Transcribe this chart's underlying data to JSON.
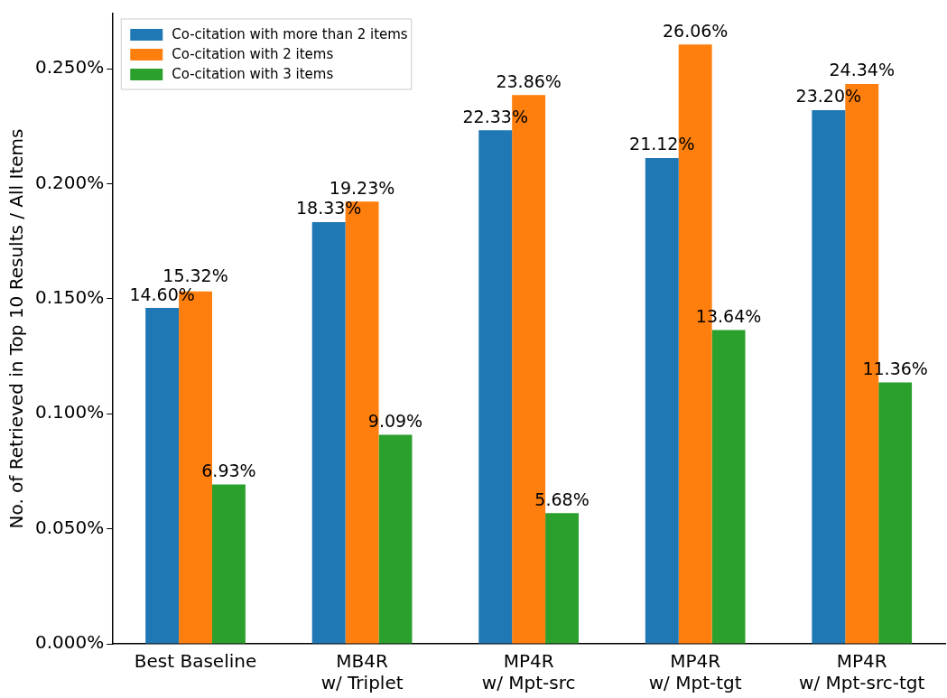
{
  "chart_data": {
    "type": "bar",
    "ylabel": "No. of Retrieved in Top 10 Results / All Items",
    "categories": [
      "Best Baseline",
      "MB4R\nw/ Triplet",
      "MP4R\nw/ Mpt-src",
      "MP4R\nw/ Mpt-tgt",
      "MP4R\nw/ Mpt-src-tgt"
    ],
    "series": [
      {
        "name": "Co-citation with more than 2 items",
        "color": "#1f77b4",
        "values": [
          0.146,
          0.1833,
          0.2233,
          0.2112,
          0.232
        ],
        "value_labels": [
          "14.60%",
          "18.33%",
          "22.33%",
          "21.12%",
          "23.20%"
        ]
      },
      {
        "name": "Co-citation with 2 items",
        "color": "#ff7f0e",
        "values": [
          0.1532,
          0.1923,
          0.2386,
          0.2606,
          0.2434
        ],
        "value_labels": [
          "15.32%",
          "19.23%",
          "23.86%",
          "26.06%",
          "24.34%"
        ]
      },
      {
        "name": "Co-citation with 3 items",
        "color": "#2ca02c",
        "values": [
          0.0693,
          0.0909,
          0.0568,
          0.1364,
          0.1136
        ],
        "value_labels": [
          "6.93%",
          "9.09%",
          "5.68%",
          "13.64%",
          "11.36%"
        ]
      }
    ],
    "ylim": [
      0,
      0.274
    ],
    "yticks": [
      {
        "value": 0,
        "label": "0.000%"
      },
      {
        "value": 0.05,
        "label": "0.050%"
      },
      {
        "value": 0.1,
        "label": "0.100%"
      },
      {
        "value": 0.15,
        "label": "0.150%"
      },
      {
        "value": 0.2,
        "label": "0.200%"
      },
      {
        "value": 0.25,
        "label": "0.250%"
      }
    ],
    "legend": "top left",
    "grid": false
  }
}
